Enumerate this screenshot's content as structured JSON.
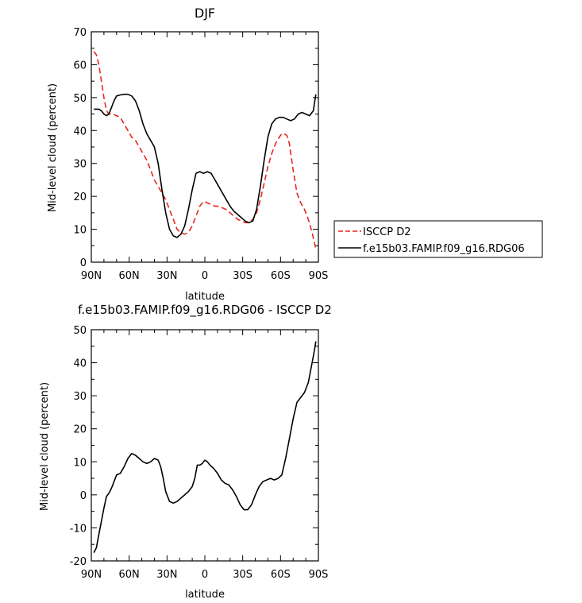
{
  "chart_data": [
    {
      "type": "line",
      "title": "DJF",
      "xlabel": "latitude",
      "ylabel": "Mid-level cloud (percent)",
      "xlim": [
        -90,
        90
      ],
      "ylim": [
        0,
        70
      ],
      "x_ticks": [
        -90,
        -60,
        -30,
        0,
        30,
        60,
        90
      ],
      "x_tick_labels": [
        "90N",
        "60N",
        "30N",
        "0",
        "30S",
        "60S",
        "90S"
      ],
      "y_ticks": [
        0,
        10,
        20,
        30,
        40,
        50,
        60,
        70
      ],
      "y_tick_labels": [
        "0",
        "10",
        "20",
        "30",
        "40",
        "50",
        "60",
        "70"
      ],
      "legend": {
        "placement": "right",
        "entries": [
          "ISCCP D2",
          "f.e15b03.FAMIP.f09_g16.RDG06"
        ]
      },
      "series": [
        {
          "name": "ISCCP D2",
          "color": "#e8261f",
          "dash": "dashed",
          "x": [
            -88,
            -86,
            -84,
            -82,
            -80,
            -78,
            -76,
            -73,
            -70,
            -67,
            -64,
            -61,
            -58,
            -55,
            -52,
            -49,
            -46,
            -43,
            -40,
            -37,
            -34,
            -31,
            -28,
            -25,
            -22,
            -19,
            -16,
            -13,
            -10,
            -7,
            -4,
            -1,
            2,
            5,
            8,
            11,
            14,
            17,
            20,
            23,
            26,
            29,
            32,
            35,
            38,
            41,
            44,
            47,
            50,
            53,
            56,
            59,
            61,
            63,
            65,
            67,
            70,
            73,
            76,
            79,
            82,
            85,
            88
          ],
          "values": [
            64,
            63,
            60,
            55,
            50,
            46,
            45,
            45,
            44.5,
            44,
            42,
            40,
            38,
            37,
            35,
            33,
            31,
            28,
            25,
            23,
            21,
            19,
            16,
            13,
            10,
            9,
            8.5,
            9,
            11,
            14,
            17,
            18.5,
            18,
            17.5,
            17,
            17,
            16.5,
            16,
            15,
            14,
            13,
            12.5,
            12,
            12,
            13,
            15,
            19,
            24,
            29,
            33,
            36,
            38,
            39,
            39,
            38.5,
            36,
            28,
            21,
            18,
            16,
            13,
            9,
            4
          ]
        },
        {
          "name": "f.e15b03.FAMIP.f09_g16.RDG06",
          "color": "#000000",
          "dash": "solid",
          "x": [
            -88,
            -86,
            -84,
            -82,
            -80,
            -78,
            -76,
            -74,
            -72,
            -70,
            -67,
            -64,
            -61,
            -58,
            -55,
            -52,
            -49,
            -46,
            -43,
            -40,
            -37,
            -34,
            -31,
            -28,
            -25,
            -22,
            -19,
            -16,
            -13,
            -10,
            -7,
            -4,
            -1,
            2,
            5,
            8,
            11,
            14,
            17,
            20,
            23,
            26,
            29,
            32,
            35,
            38,
            41,
            44,
            47,
            50,
            53,
            56,
            59,
            62,
            65,
            68,
            71,
            74,
            77,
            80,
            83,
            86,
            88
          ],
          "values": [
            46.5,
            46.5,
            46.5,
            46,
            45,
            44.5,
            45,
            47,
            49,
            50.5,
            50.8,
            51,
            51,
            50.5,
            49,
            46,
            42,
            39,
            37,
            35,
            30,
            22,
            15,
            10,
            8,
            7.5,
            8.5,
            11,
            16,
            22,
            27,
            27.5,
            27,
            27.5,
            27,
            25,
            23,
            21,
            19,
            17,
            15.5,
            14.5,
            13.5,
            12.5,
            12,
            12.5,
            16,
            23,
            31,
            38,
            42,
            43.5,
            44,
            44,
            43.5,
            43,
            43.5,
            45,
            45.5,
            45,
            44.5,
            46,
            51
          ]
        }
      ]
    },
    {
      "type": "line",
      "title": "f.e15b03.FAMIP.f09_g16.RDG06 - ISCCP D2",
      "xlabel": "latitude",
      "ylabel": "Mid-level cloud (percent)",
      "xlim": [
        -90,
        90
      ],
      "ylim": [
        -20,
        50
      ],
      "x_ticks": [
        -90,
        -60,
        -30,
        0,
        30,
        60,
        90
      ],
      "x_tick_labels": [
        "90N",
        "60N",
        "30N",
        "0",
        "30S",
        "60S",
        "90S"
      ],
      "y_ticks": [
        -20,
        -10,
        0,
        10,
        20,
        30,
        40,
        50
      ],
      "y_tick_labels": [
        "-20",
        "-10",
        "0",
        "10",
        "20",
        "30",
        "40",
        "50"
      ],
      "series": [
        {
          "color": "#000000",
          "dash": "solid",
          "x": [
            -88,
            -86,
            -84,
            -82,
            -80,
            -78,
            -76,
            -74,
            -72,
            -70,
            -67,
            -64,
            -61,
            -58,
            -55,
            -52,
            -49,
            -46,
            -43,
            -40,
            -37,
            -35,
            -33,
            -31,
            -28,
            -25,
            -22,
            -19,
            -16,
            -13,
            -10,
            -8,
            -6,
            -4,
            -2,
            0,
            2,
            4,
            7,
            10,
            13,
            16,
            19,
            22,
            25,
            28,
            31,
            34,
            37,
            40,
            43,
            46,
            49,
            52,
            55,
            58,
            61,
            64,
            67,
            70,
            73,
            76,
            79,
            82,
            85,
            87,
            88
          ],
          "values": [
            -17.5,
            -16,
            -12,
            -8,
            -4,
            -0.5,
            0.5,
            2,
            4,
            6,
            6.5,
            8.5,
            11,
            12.5,
            12,
            11,
            10,
            9.5,
            10,
            11,
            10.5,
            8.5,
            5,
            1,
            -2,
            -2.5,
            -2,
            -1,
            0,
            1,
            2.5,
            5,
            9,
            9,
            9.5,
            10.5,
            10,
            9,
            8,
            6.5,
            4.5,
            3.5,
            3,
            1.5,
            -0.5,
            -3,
            -4.5,
            -4.5,
            -3,
            0,
            2.5,
            4,
            4.5,
            5,
            4.5,
            5,
            6,
            11,
            17,
            23,
            28,
            29.5,
            31,
            34,
            40,
            44,
            46.5
          ]
        }
      ]
    }
  ]
}
